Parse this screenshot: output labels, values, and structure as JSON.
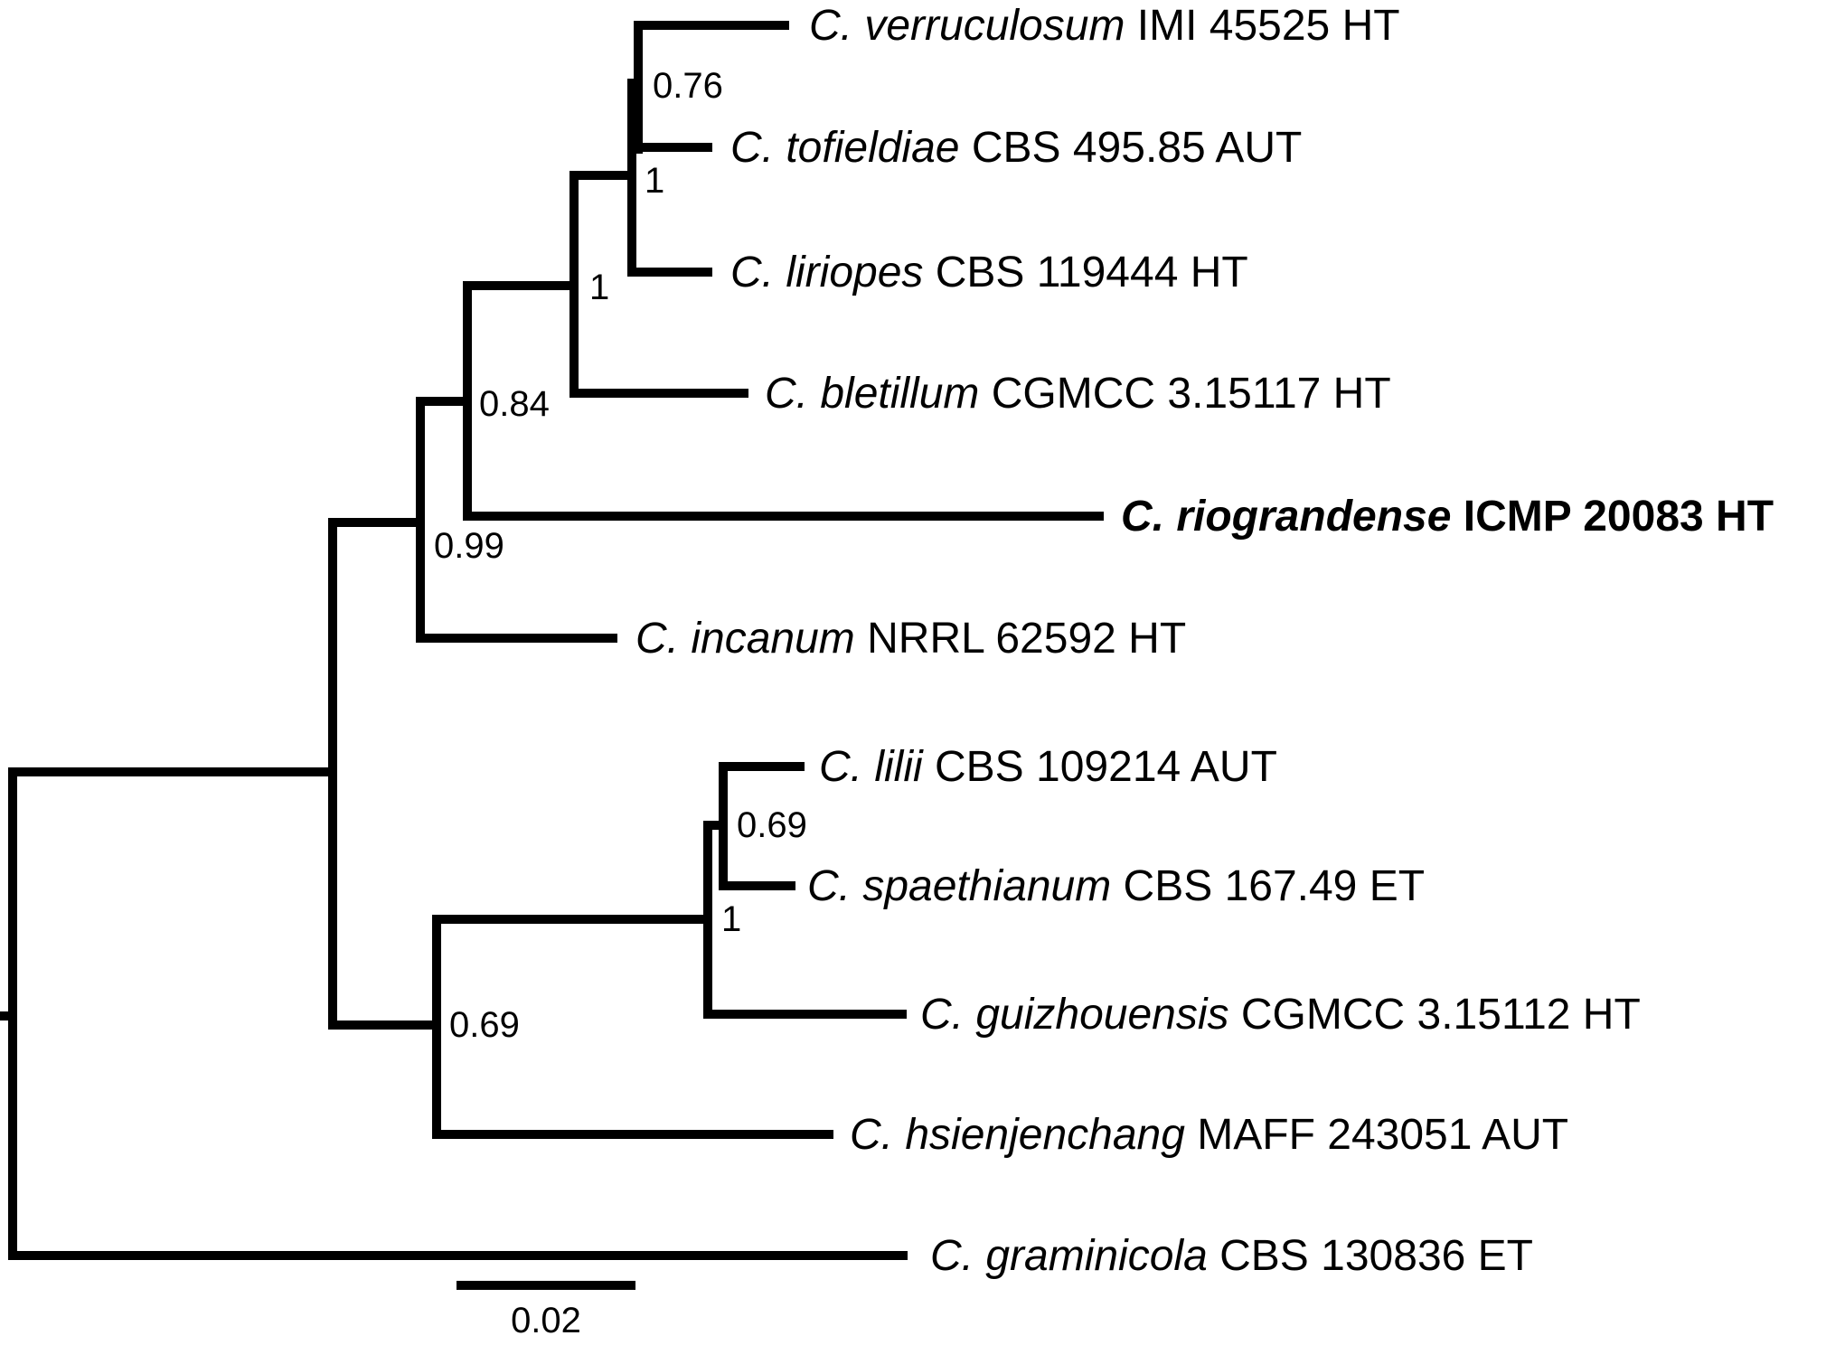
{
  "taxa": [
    {
      "species": "C. verruculosum",
      "strain": "IMI 45525 HT",
      "highlight": false
    },
    {
      "species": "C. tofieldiae",
      "strain": "CBS 495.85 AUT",
      "highlight": false
    },
    {
      "species": "C. liriopes",
      "strain": "CBS 119444 HT",
      "highlight": false
    },
    {
      "species": "C. bletillum",
      "strain": "CGMCC 3.15117 HT",
      "highlight": false
    },
    {
      "species": "C. riograndense",
      "strain": "ICMP 20083 HT",
      "highlight": true
    },
    {
      "species": "C. incanum",
      "strain": "NRRL 62592 HT",
      "highlight": false
    },
    {
      "species": "C. lilii",
      "strain": "CBS 109214 AUT",
      "highlight": false
    },
    {
      "species": "C. spaethianum",
      "strain": "CBS 167.49 ET",
      "highlight": false
    },
    {
      "species": "C. guizhouensis",
      "strain": "CGMCC 3.15112 HT",
      "highlight": false
    },
    {
      "species": "C. hsienjenchang",
      "strain": "MAFF 243051 AUT",
      "highlight": false
    },
    {
      "species": "C. graminicola",
      "strain": "CBS 130836 ET",
      "highlight": false
    }
  ],
  "support_values": [
    "0.76",
    "1",
    "1",
    "0.84",
    "0.99",
    "0.69",
    "1",
    "0.69"
  ],
  "scale_bar": {
    "label": "0.02",
    "value": 0.02
  }
}
